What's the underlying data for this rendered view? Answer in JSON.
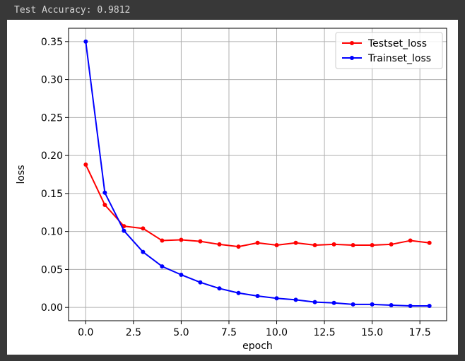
{
  "output": {
    "text": "Test Accuracy: 0.9812"
  },
  "chart_data": {
    "type": "line",
    "title": "",
    "xlabel": "epoch",
    "ylabel": "loss",
    "x": [
      0,
      1,
      2,
      3,
      4,
      5,
      6,
      7,
      8,
      9,
      10,
      11,
      12,
      13,
      14,
      15,
      16,
      17,
      18
    ],
    "xlim": [
      -0.9,
      18.9
    ],
    "ylim": [
      -0.0175,
      0.3675
    ],
    "xticks": [
      0.0,
      2.5,
      5.0,
      7.5,
      10.0,
      12.5,
      15.0,
      17.5
    ],
    "xtick_labels": [
      "0.0",
      "2.5",
      "5.0",
      "7.5",
      "10.0",
      "12.5",
      "15.0",
      "17.5"
    ],
    "yticks": [
      0.0,
      0.05,
      0.1,
      0.15,
      0.2,
      0.25,
      0.3,
      0.35
    ],
    "ytick_labels": [
      "0.00",
      "0.05",
      "0.10",
      "0.15",
      "0.20",
      "0.25",
      "0.30",
      "0.35"
    ],
    "grid": true,
    "legend_position": "upper right",
    "series": [
      {
        "name": "Testset_loss",
        "color": "#ff0000",
        "marker": "dot",
        "values": [
          0.188,
          0.135,
          0.107,
          0.104,
          0.088,
          0.089,
          0.087,
          0.083,
          0.08,
          0.085,
          0.082,
          0.085,
          0.082,
          0.083,
          0.082,
          0.082,
          0.083,
          0.088,
          0.085
        ]
      },
      {
        "name": "Trainset_loss",
        "color": "#0000ff",
        "marker": "dot",
        "values": [
          0.35,
          0.151,
          0.101,
          0.073,
          0.054,
          0.043,
          0.033,
          0.025,
          0.019,
          0.015,
          0.012,
          0.01,
          0.007,
          0.006,
          0.004,
          0.004,
          0.003,
          0.002,
          0.002
        ]
      }
    ]
  }
}
